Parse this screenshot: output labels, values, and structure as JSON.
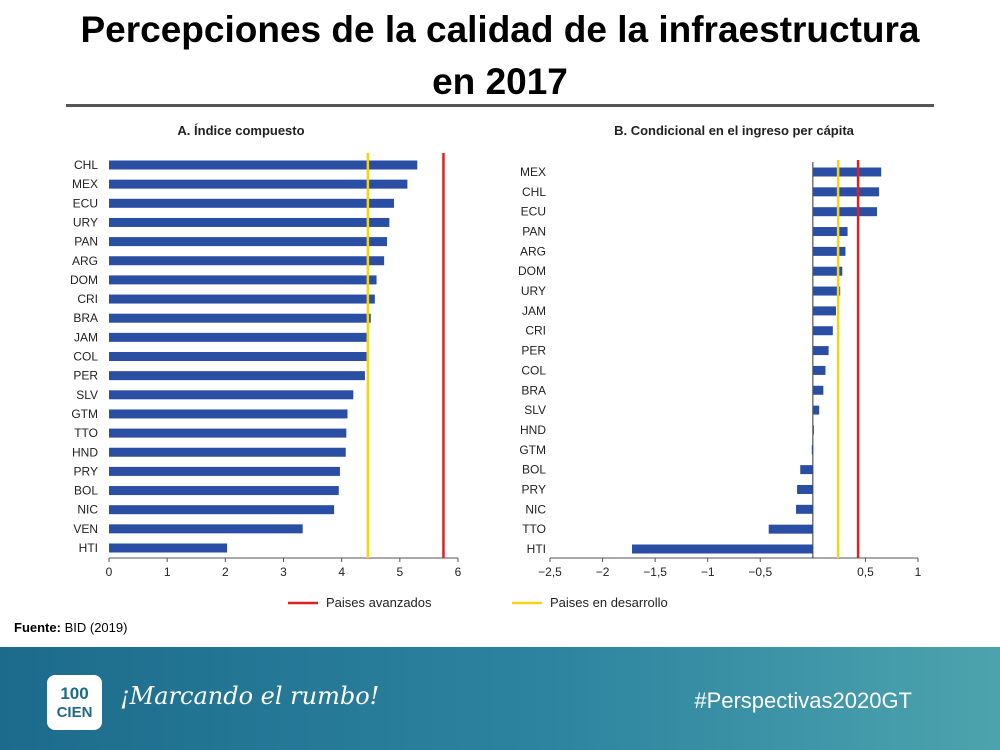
{
  "title": {
    "line1": "Percepciones de la calidad de la infraestructura",
    "line2": "en 2017"
  },
  "source": {
    "label": "Fuente:",
    "value": "BID (2019)"
  },
  "footer": {
    "logo_top": "100",
    "logo_bottom": "CIEN",
    "slogan": "¡Marcando el rumbo!",
    "hashtag": "#Perspectivas2020GT"
  },
  "legend": {
    "advanced": "Paises avanzados",
    "developing": "Paises en desarrollo"
  },
  "colors": {
    "bar": "#2a4ea4",
    "advanced": "#e02020",
    "developing": "#f5d414",
    "footer": "#2c84a0"
  },
  "chart_data": [
    {
      "type": "bar",
      "orientation": "horizontal",
      "title": "A. Índice compuesto",
      "categories": [
        "CHL",
        "MEX",
        "ECU",
        "URY",
        "PAN",
        "ARG",
        "DOM",
        "CRI",
        "BRA",
        "JAM",
        "COL",
        "PER",
        "SLV",
        "GTM",
        "TTO",
        "HND",
        "PRY",
        "BOL",
        "NIC",
        "VEN",
        "HTI"
      ],
      "values": [
        5.3,
        5.13,
        4.9,
        4.82,
        4.78,
        4.73,
        4.6,
        4.57,
        4.5,
        4.43,
        4.43,
        4.4,
        4.2,
        4.1,
        4.08,
        4.07,
        3.97,
        3.95,
        3.87,
        3.33,
        2.03
      ],
      "xlim": [
        0,
        6
      ],
      "xticks": [
        "0",
        "1",
        "2",
        "3",
        "4",
        "5",
        "6"
      ],
      "reference_lines": [
        {
          "name": "Paises avanzados",
          "value": 5.75
        },
        {
          "name": "Paises en desarrollo",
          "value": 4.45
        }
      ]
    },
    {
      "type": "bar",
      "orientation": "horizontal",
      "title": "B. Condicional en el ingreso per cápita",
      "categories": [
        "MEX",
        "CHL",
        "ECU",
        "PAN",
        "ARG",
        "DOM",
        "URY",
        "JAM",
        "CRI",
        "PER",
        "COL",
        "BRA",
        "SLV",
        "HND",
        "GTM",
        "BOL",
        "PRY",
        "NIC",
        "TTO",
        "HTI"
      ],
      "values": [
        0.65,
        0.63,
        0.61,
        0.33,
        0.31,
        0.28,
        0.26,
        0.22,
        0.19,
        0.15,
        0.12,
        0.1,
        0.06,
        0.01,
        -0.01,
        -0.12,
        -0.15,
        -0.16,
        -0.42,
        -1.72
      ],
      "xlim": [
        -2.5,
        1
      ],
      "xticks": [
        "−2,5",
        "−2",
        "−1,5",
        "−1",
        "−0,5",
        "0,5",
        "1"
      ],
      "xtick_values": [
        -2.5,
        -2,
        -1.5,
        -1,
        -0.5,
        0.5,
        1
      ],
      "reference_lines": [
        {
          "name": "Paises avanzados",
          "value": 0.43
        },
        {
          "name": "Paises en desarrollo",
          "value": 0.24
        }
      ]
    }
  ]
}
